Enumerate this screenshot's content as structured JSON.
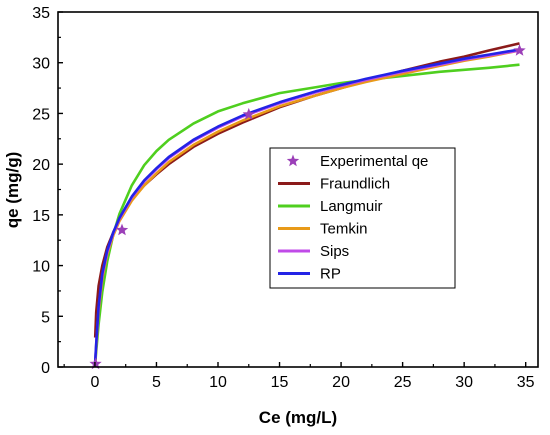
{
  "chart_data": {
    "type": "line",
    "xlabel": "Ce (mg/L)",
    "ylabel": "qe (mg/g)",
    "xlim": [
      -3,
      36
    ],
    "ylim": [
      0,
      35
    ],
    "x_ticks": [
      0,
      5,
      10,
      15,
      20,
      25,
      30,
      35
    ],
    "y_ticks": [
      0,
      5,
      10,
      15,
      20,
      25,
      30,
      35
    ],
    "grid": false,
    "legend_position": "center-right",
    "experimental": {
      "name": "Experimental qe",
      "color": "#9b3fb8",
      "marker": "star",
      "points": [
        [
          0.05,
          0.3
        ],
        [
          2.2,
          13.5
        ],
        [
          12.5,
          24.9
        ],
        [
          34.5,
          31.2
        ]
      ]
    },
    "series": [
      {
        "name": "Fraundlich",
        "color": "#8b1a1a",
        "x": [
          0.02,
          0.1,
          0.3,
          0.6,
          1,
          1.5,
          2,
          3,
          4,
          5,
          6,
          8,
          10,
          12,
          15,
          18,
          20,
          22,
          25,
          28,
          30,
          32,
          34.5
        ],
        "y": [
          2.9,
          5.4,
          8.0,
          10.0,
          11.8,
          13.3,
          14.6,
          16.5,
          17.9,
          19.0,
          20.0,
          21.7,
          23.0,
          24.1,
          25.6,
          26.8,
          27.5,
          28.2,
          29.2,
          30.1,
          30.6,
          31.2,
          31.9
        ]
      },
      {
        "name": "Langmuir",
        "color": "#4fcf1f",
        "x": [
          0,
          0.1,
          0.3,
          0.6,
          1,
          1.5,
          2,
          3,
          4,
          5,
          6,
          8,
          10,
          12,
          15,
          18,
          20,
          22,
          25,
          28,
          30,
          32,
          34.5
        ],
        "y": [
          0,
          1.5,
          4.2,
          7.4,
          10.4,
          13.1,
          15.1,
          17.9,
          19.9,
          21.3,
          22.4,
          24.0,
          25.2,
          26.0,
          27.0,
          27.6,
          28.0,
          28.3,
          28.7,
          29.1,
          29.3,
          29.5,
          29.8
        ]
      },
      {
        "name": "Temkin",
        "color": "#e89a18",
        "x": [
          0,
          0.1,
          0.3,
          0.6,
          1,
          1.5,
          2,
          3,
          4,
          5,
          6,
          8,
          10,
          12,
          15,
          18,
          20,
          22,
          25,
          28,
          30,
          32,
          34.5
        ],
        "y": [
          0,
          2.0,
          5.5,
          8.7,
          11.1,
          13.0,
          14.4,
          16.4,
          17.9,
          19.1,
          20.2,
          21.9,
          23.2,
          24.3,
          25.7,
          26.8,
          27.5,
          28.1,
          28.9,
          29.7,
          30.2,
          30.6,
          31.2
        ]
      },
      {
        "name": "Sips",
        "color": "#c04ae8",
        "x": [
          0,
          0.1,
          0.3,
          0.6,
          1,
          1.5,
          2,
          3,
          4,
          5,
          6,
          8,
          10,
          12,
          15,
          18,
          20,
          22,
          25,
          28,
          30,
          32,
          34.5
        ],
        "y": [
          0,
          2.2,
          5.8,
          9.0,
          11.3,
          13.2,
          14.6,
          16.7,
          18.3,
          19.5,
          20.6,
          22.3,
          23.6,
          24.7,
          26.0,
          27.1,
          27.7,
          28.3,
          29.1,
          29.8,
          30.3,
          30.7,
          31.2
        ]
      },
      {
        "name": "RP",
        "color": "#2323e6",
        "x": [
          0,
          0.1,
          0.3,
          0.6,
          1,
          1.5,
          2,
          3,
          4,
          5,
          6,
          8,
          10,
          12,
          15,
          18,
          20,
          22,
          25,
          28,
          30,
          32,
          34.5
        ],
        "y": [
          0,
          2.3,
          6.0,
          9.2,
          11.5,
          13.3,
          14.7,
          16.8,
          18.4,
          19.6,
          20.7,
          22.4,
          23.7,
          24.8,
          26.1,
          27.2,
          27.8,
          28.4,
          29.2,
          29.9,
          30.4,
          30.8,
          31.3
        ]
      }
    ]
  }
}
